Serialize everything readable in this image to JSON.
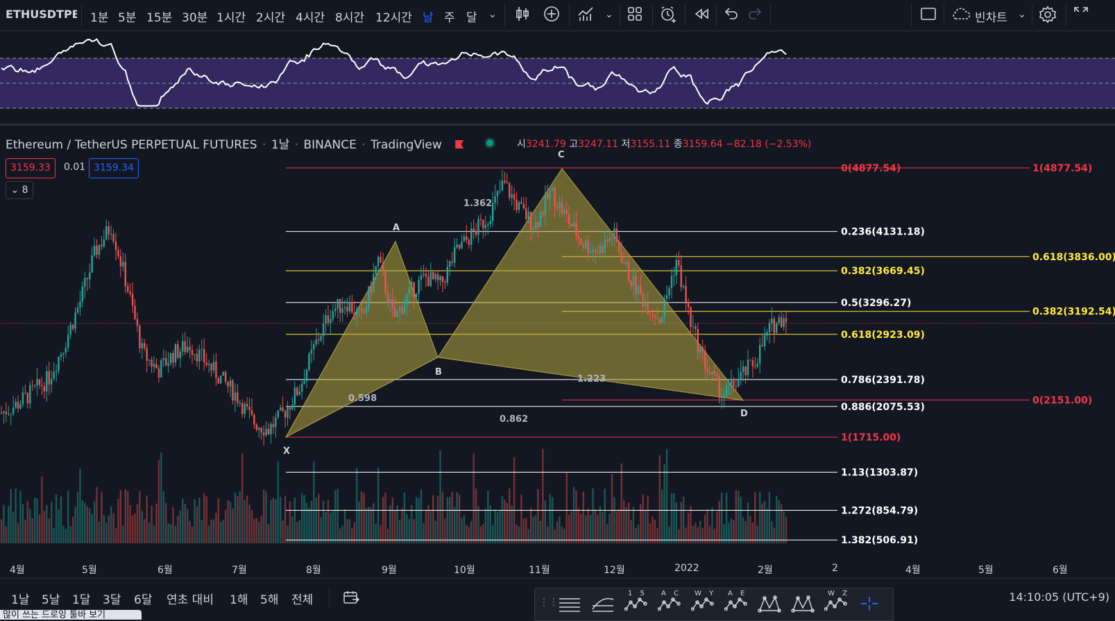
{
  "toolbar": {
    "symbol": "ETHUSDTPER",
    "timeframes": [
      "1분",
      "5분",
      "15분",
      "30분",
      "1시간",
      "2시간",
      "4시간",
      "8시간",
      "12시간",
      "날",
      "주",
      "달"
    ],
    "active_timeframe": "날",
    "chart_type_name": "빈차트",
    "icons": [
      "chevron-down-icon",
      "candles-icon",
      "plus-circle-icon",
      "indicators-icon",
      "layout-icon",
      "alert-icon",
      "replay-icon",
      "undo-icon",
      "redo-icon",
      "fullscreen-box-icon",
      "cloud-icon",
      "settings-icon",
      "expand-icon"
    ]
  },
  "legend": {
    "title": "Ethereum / TetherUS PERPETUAL FUTURES",
    "interval": "1날",
    "exchange": "BINANCE",
    "source": "TradingView",
    "open_label": "시",
    "open": "3241.79",
    "high_label": "고",
    "high": "3247.11",
    "low_label": "저",
    "low": "3155.11",
    "close_label": "종",
    "close": "3159.64",
    "change": "−82.18 (−2.53%)",
    "bid": "3159.33",
    "spread": "0.01",
    "ask": "3159.34",
    "indicator_count": "8"
  },
  "pattern": {
    "points": [
      "X",
      "A",
      "B",
      "C",
      "D"
    ],
    "ratios": [
      "1.362",
      "0.598",
      "1.223",
      "0.862"
    ]
  },
  "fib_left": [
    {
      "label": "0(4877.54)",
      "color": "#f23645",
      "value": 4877.54
    },
    {
      "label": "0.236(4131.18)",
      "color": "#ffffff",
      "value": 4131.18
    },
    {
      "label": "0.382(3669.45)",
      "color": "#ffeb3b",
      "value": 3669.45
    },
    {
      "label": "0.5(3296.27)",
      "color": "#ffffff",
      "value": 3296.27
    },
    {
      "label": "0.618(2923.09)",
      "color": "#ffeb3b",
      "value": 2923.09
    },
    {
      "label": "0.786(2391.78)",
      "color": "#ffffff",
      "value": 2391.78
    },
    {
      "label": "0.886(2075.53)",
      "color": "#ffffff",
      "value": 2075.53
    },
    {
      "label": "1(1715.00)",
      "color": "#f23645",
      "value": 1715.0
    },
    {
      "label": "1.13(1303.87)",
      "color": "#ffffff",
      "value": 1303.87
    },
    {
      "label": "1.272(854.79)",
      "color": "#ffffff",
      "value": 854.79
    },
    {
      "label": "1.382(506.91)",
      "color": "#ffffff",
      "value": 506.91
    }
  ],
  "fib_right": [
    {
      "label": "1(4877.54)",
      "color": "#f23645",
      "value": 4877.54
    },
    {
      "label": "0.618(3836.00)",
      "color": "#ffeb3b",
      "value": 3836.0
    },
    {
      "label": "0.382(3192.54)",
      "color": "#ffeb3b",
      "value": 3192.54
    },
    {
      "label": "0(2151.00)",
      "color": "#f23645",
      "value": 2151.0
    }
  ],
  "x_axis": [
    "4월",
    "5월",
    "6월",
    "7월",
    "8월",
    "9월",
    "10월",
    "11월",
    "12월",
    "2022",
    "2월",
    "2",
    "4월",
    "5월",
    "6월"
  ],
  "ranges": [
    "1날",
    "5날",
    "1달",
    "3달",
    "6달",
    "연초 대비",
    "1해",
    "5해",
    "전체"
  ],
  "time": "14:10:05 (UTC+9)",
  "drawing_tools": [
    "horizontal-lines-icon",
    "curve-icon",
    "pattern-15-icon",
    "pattern-ac-icon",
    "pattern-wy-icon",
    "pattern-ae-icon",
    "xabcd-icon",
    "cypher-icon",
    "pattern-wz-icon",
    "crosshair-icon"
  ],
  "drawing_labels": [
    "",
    "",
    "1 5",
    "A C",
    "W Y",
    "A E",
    "",
    "",
    "W Z",
    ""
  ],
  "hint": "많이 쓰는 드로잉 툴바 보기",
  "chart_data": {
    "type": "candlestick",
    "symbol": "ETHUSDT",
    "y_range": [
      400,
      5000
    ],
    "close_approx": [
      2000,
      2100,
      2250,
      2400,
      2800,
      3300,
      3900,
      4200,
      3500,
      2700,
      2500,
      2700,
      2800,
      2600,
      2400,
      2200,
      1900,
      1800,
      2000,
      2300,
      2800,
      3200,
      3300,
      3100,
      3800,
      3100,
      3400,
      3600,
      3500,
      3900,
      4100,
      4300,
      4700,
      4400,
      4200,
      4600,
      4300,
      4000,
      3900,
      4100,
      3600,
      3300,
      3100,
      3800,
      3000,
      2500,
      2200,
      2400,
      2600,
      3000,
      3159.64
    ]
  }
}
